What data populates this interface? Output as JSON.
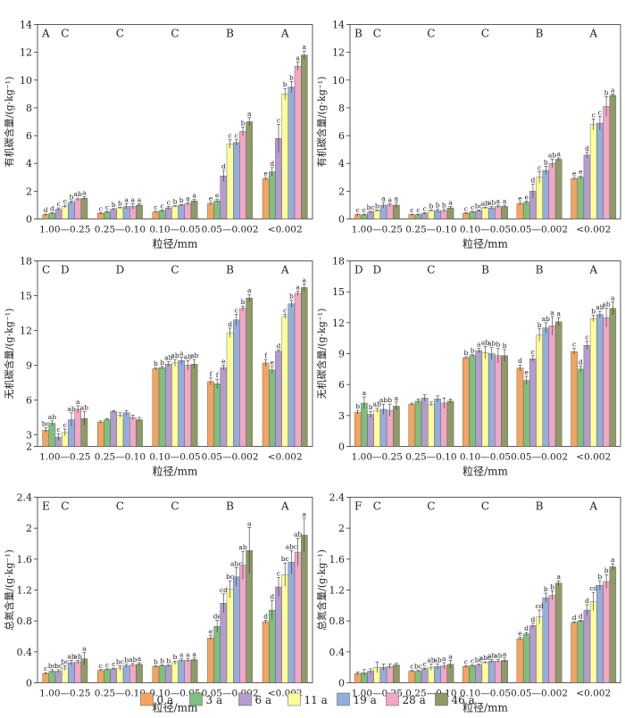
{
  "colors": [
    "#f4a460",
    "#7fbf7f",
    "#b39ccf",
    "#ffff99",
    "#93aedc",
    "#f2a7c5",
    "#8e9a67"
  ],
  "legend": [
    "0 a",
    "3 a",
    "6 a",
    "11 a",
    "19 a",
    "28 a",
    "46 a"
  ],
  "chart_data": [
    {
      "type": "bar",
      "panel": "A",
      "ylabel": "有机碳含量/(g·kg⁻¹)",
      "xlabel": "粒径/mm",
      "categories": [
        "1.00—0.25",
        "0.25—0.10",
        "0.10—0.05",
        "0.05—0.002",
        "<0.002"
      ],
      "group_letters": [
        "C",
        "C",
        "C",
        "B",
        "A"
      ],
      "ylim": [
        0,
        14
      ],
      "yticks": [
        0,
        2,
        4,
        6,
        8,
        10,
        12,
        14
      ],
      "values": [
        [
          0.3,
          0.4,
          0.7,
          0.9,
          1.2,
          1.4,
          1.5
        ],
        [
          0.4,
          0.5,
          0.7,
          0.8,
          0.9,
          0.9,
          1.0
        ],
        [
          0.5,
          0.6,
          0.8,
          0.9,
          1.0,
          1.1,
          1.3
        ],
        [
          1.1,
          1.3,
          3.1,
          5.4,
          5.5,
          6.3,
          7.0
        ],
        [
          2.9,
          3.4,
          5.8,
          9.0,
          9.5,
          11.0,
          11.8
        ]
      ],
      "errors": [
        [
          0.05,
          0.05,
          0.1,
          0.1,
          0.1,
          0.1,
          0.1
        ],
        [
          0.05,
          0.05,
          0.05,
          0.05,
          0.2,
          0.2,
          0.1
        ],
        [
          0.05,
          0.05,
          0.1,
          0.05,
          0.05,
          0.1,
          0.1
        ],
        [
          0.1,
          0.1,
          0.4,
          0.3,
          0.2,
          0.3,
          0.3
        ],
        [
          0.1,
          0.3,
          1.0,
          0.4,
          0.4,
          0.3,
          0.3
        ]
      ],
      "letters": [
        [
          "d",
          "d",
          "c",
          "c",
          "b",
          "ab",
          "a"
        ],
        [
          "c",
          "c",
          "b",
          "b",
          "a",
          "a",
          "a"
        ],
        [
          "c",
          "c",
          "c",
          "b",
          "b",
          "a",
          "a"
        ],
        [
          "e",
          "e",
          "d",
          "c",
          "c",
          "b",
          "a"
        ],
        [
          "e",
          "d",
          "c",
          "b",
          "b",
          "a",
          "a"
        ]
      ]
    },
    {
      "type": "bar",
      "panel": "B",
      "ylabel": "有机碳含量/(g·kg⁻¹)",
      "xlabel": "粒径/mm",
      "categories": [
        "1.00—0.25",
        "0.25—0.10",
        "0.10—0.05",
        "0.05—0.002",
        "<0.002"
      ],
      "group_letters": [
        "C",
        "C",
        "C",
        "B",
        "A"
      ],
      "ylim": [
        0,
        14
      ],
      "yticks": [
        0,
        2,
        4,
        6,
        8,
        10,
        12,
        14
      ],
      "values": [
        [
          0.3,
          0.3,
          0.5,
          0.6,
          1.0,
          1.0,
          1.0
        ],
        [
          0.3,
          0.3,
          0.4,
          0.6,
          0.6,
          0.6,
          0.8
        ],
        [
          0.4,
          0.5,
          0.6,
          0.8,
          0.8,
          0.9,
          0.9
        ],
        [
          1.1,
          1.2,
          2.0,
          3.0,
          3.5,
          4.0,
          4.3
        ],
        [
          2.9,
          3.0,
          4.6,
          6.8,
          6.9,
          8.1,
          8.9
        ]
      ],
      "errors": [
        [
          0.05,
          0.05,
          0.05,
          0.05,
          0.2,
          0.1,
          0.2
        ],
        [
          0.05,
          0.05,
          0.05,
          0.05,
          0.1,
          0.1,
          0.1
        ],
        [
          0.05,
          0.05,
          0.05,
          0.05,
          0.1,
          0.1,
          0.1
        ],
        [
          0.1,
          0.1,
          0.5,
          0.4,
          0.3,
          0.3,
          0.1
        ],
        [
          0.1,
          0.1,
          0.2,
          0.4,
          0.5,
          0.7,
          0.1
        ]
      ],
      "letters": [
        [
          "c",
          "c",
          "bc",
          "b",
          "a",
          "a",
          "a"
        ],
        [
          "c",
          "c",
          "c",
          "b",
          "b",
          "b",
          "a"
        ],
        [
          "c",
          "c",
          "bc",
          "ab",
          "ab",
          "a",
          "a"
        ],
        [
          "e",
          "e",
          "d",
          "c",
          "b",
          "ab",
          "a"
        ],
        [
          "e",
          "e",
          "d",
          "c",
          "c",
          "b",
          "a"
        ]
      ]
    },
    {
      "type": "bar",
      "panel": "C",
      "ylabel": "无机碳含量/(g·kg⁻¹)",
      "xlabel": "粒径/mm",
      "categories": [
        "1.00—0.25",
        "0.25—0.10",
        "0.10—0.05",
        "0.05—0.002",
        "<0.002"
      ],
      "group_letters": [
        "D",
        "D",
        "C",
        "B",
        "A"
      ],
      "ylim": [
        2,
        18
      ],
      "yticks": [
        2,
        3,
        6,
        9,
        12,
        15,
        18
      ],
      "values": [
        [
          3.4,
          4.0,
          2.8,
          3.2,
          4.3,
          5.2,
          4.4
        ],
        [
          4.1,
          4.3,
          5.0,
          4.7,
          4.9,
          4.5,
          4.3
        ],
        [
          8.7,
          8.8,
          9.1,
          9.2,
          9.4,
          9.0,
          9.1
        ],
        [
          7.6,
          7.4,
          8.8,
          11.8,
          12.9,
          13.9,
          14.8
        ],
        [
          9.2,
          8.6,
          10.2,
          13.2,
          14.3,
          15.2,
          15.7
        ]
      ],
      "errors": [
        [
          0.2,
          0.2,
          0.3,
          0.3,
          0.6,
          0.3,
          0.6
        ],
        [
          0.1,
          0.1,
          0.1,
          0.2,
          0.2,
          0.2,
          0.2
        ],
        [
          0.1,
          0.1,
          0.2,
          0.3,
          0.3,
          0.4,
          0.4
        ],
        [
          0.3,
          0.4,
          0.2,
          0.4,
          0.5,
          0.2,
          0.3
        ],
        [
          0.3,
          0.3,
          0.1,
          0.2,
          0.3,
          0.2,
          0.3
        ]
      ],
      "letters": [
        [
          "bc",
          "ab",
          "c",
          "c",
          "ab",
          "a",
          "ab"
        ],
        [
          "",
          "",
          "",
          "",
          "",
          "",
          ""
        ],
        [
          "b",
          "b",
          "ab",
          "ab",
          "a",
          "ab",
          "ab"
        ],
        [
          "f",
          "f",
          "e",
          "d",
          "c",
          "b",
          "a"
        ],
        [
          "f",
          "e",
          "d",
          "c",
          "b",
          "a",
          "a"
        ]
      ]
    },
    {
      "type": "bar",
      "panel": "D",
      "ylabel": "无机碳含量/(g·kg⁻¹)",
      "xlabel": "粒径/mm",
      "categories": [
        "1.00—0.25",
        "0.25—0.10",
        "0.10—0.05",
        "0.05—0.002",
        "<0.002"
      ],
      "group_letters": [
        "D",
        "C",
        "B",
        "B",
        "A"
      ],
      "ylim": [
        0,
        18
      ],
      "yticks": [
        0,
        3,
        6,
        9,
        12,
        15,
        18
      ],
      "values": [
        [
          3.3,
          4.2,
          3.1,
          3.5,
          3.6,
          3.5,
          3.9
        ],
        [
          4.1,
          4.4,
          4.7,
          4.1,
          4.6,
          4.2,
          4.4
        ],
        [
          8.6,
          8.8,
          9.3,
          9.1,
          9.0,
          8.8,
          8.8
        ],
        [
          7.6,
          6.4,
          8.5,
          10.8,
          11.5,
          11.7,
          12.1
        ],
        [
          9.2,
          7.5,
          9.8,
          12.4,
          12.8,
          12.5,
          13.4
        ]
      ],
      "errors": [
        [
          0.2,
          0.6,
          0.3,
          0.2,
          0.5,
          0.6,
          0.4
        ],
        [
          0.1,
          0.2,
          0.3,
          0.2,
          0.3,
          0.5,
          0.2
        ],
        [
          0.1,
          0.1,
          0.2,
          0.6,
          0.6,
          0.7,
          0.6
        ],
        [
          0.3,
          0.4,
          0.3,
          0.6,
          0.5,
          0.9,
          0.4
        ],
        [
          0.3,
          0.3,
          0.4,
          0.3,
          0.3,
          0.9,
          0.6
        ]
      ],
      "letters": [
        [
          "b",
          "a",
          "b",
          "ab",
          "ab",
          "b",
          "a"
        ],
        [
          "",
          "",
          "",
          "",
          "",
          "",
          ""
        ],
        [
          "b",
          "b",
          "a",
          "ab",
          "ab",
          "b",
          "b"
        ],
        [
          "d",
          "e",
          "c",
          "b",
          "ab",
          "a",
          "a"
        ],
        [
          "c",
          "d",
          "c",
          "b",
          "ab",
          "ab",
          "a"
        ]
      ]
    },
    {
      "type": "bar",
      "panel": "E",
      "ylabel": "总氮含量/(g·kg⁻¹)",
      "xlabel": "粒径/mm",
      "categories": [
        "1.00—0.25",
        "0.25—0.10",
        "0.10—0.05",
        "0.05—0.002",
        "<0.002"
      ],
      "group_letters": [
        "C",
        "C",
        "C",
        "B",
        "A"
      ],
      "ylim": [
        0,
        2.4
      ],
      "yticks": [
        0,
        0.4,
        0.8,
        1.2,
        1.6,
        2.0,
        2.4
      ],
      "values": [
        [
          0.12,
          0.15,
          0.15,
          0.19,
          0.26,
          0.27,
          0.31
        ],
        [
          0.16,
          0.17,
          0.18,
          0.19,
          0.22,
          0.23,
          0.24
        ],
        [
          0.21,
          0.22,
          0.22,
          0.26,
          0.29,
          0.29,
          0.3
        ],
        [
          0.58,
          0.73,
          1.03,
          1.21,
          1.37,
          1.52,
          1.71
        ],
        [
          0.79,
          0.94,
          1.24,
          1.4,
          1.56,
          1.69,
          1.91
        ]
      ],
      "errors": [
        [
          0.01,
          0.02,
          0.02,
          0.03,
          0.03,
          0.02,
          0.08
        ],
        [
          0.01,
          0.01,
          0.01,
          0.03,
          0.02,
          0.02,
          0.02
        ],
        [
          0.01,
          0.01,
          0.01,
          0.02,
          0.02,
          0.02,
          0.02
        ],
        [
          0.03,
          0.08,
          0.12,
          0.11,
          0.12,
          0.18,
          0.3
        ],
        [
          0.02,
          0.12,
          0.12,
          0.15,
          0.15,
          0.18,
          0.22
        ]
      ],
      "letters": [
        [
          "c",
          "bc",
          "bc",
          "bc",
          "ab",
          "ab",
          "a"
        ],
        [
          "c",
          "c",
          "c",
          "bc",
          "b",
          "ab",
          "a"
        ],
        [
          "b",
          "b",
          "b",
          "b",
          "a",
          "a",
          "a"
        ],
        [
          "e",
          "de",
          "cd",
          "bc",
          "abc",
          "ab",
          "a"
        ],
        [
          "d",
          "d",
          "c",
          "bc",
          "abc",
          "ab",
          "a"
        ]
      ]
    },
    {
      "type": "bar",
      "panel": "F",
      "ylabel": "总氮含量/(g·kg⁻¹)",
      "xlabel": "粒径/mm",
      "categories": [
        "1.00—0.25",
        "0.25—0.10",
        "0.10—0.05",
        "0.05—0.002",
        "<0.002"
      ],
      "group_letters": [
        "C",
        "C",
        "C",
        "B",
        "A"
      ],
      "ylim": [
        0,
        2.4
      ],
      "yticks": [
        0,
        0.4,
        0.8,
        1.2,
        1.6,
        2.0,
        2.4
      ],
      "values": [
        [
          0.12,
          0.13,
          0.15,
          0.2,
          0.2,
          0.21,
          0.23
        ],
        [
          0.15,
          0.15,
          0.18,
          0.2,
          0.21,
          0.22,
          0.24
        ],
        [
          0.21,
          0.22,
          0.23,
          0.26,
          0.28,
          0.28,
          0.29
        ],
        [
          0.57,
          0.63,
          0.74,
          0.85,
          1.1,
          1.13,
          1.29
        ],
        [
          0.78,
          0.8,
          0.94,
          1.05,
          1.26,
          1.31,
          1.5
        ]
      ],
      "errors": [
        [
          0.02,
          0.04,
          0.03,
          0.07,
          0.04,
          0.03,
          0.02
        ],
        [
          0.01,
          0.01,
          0.01,
          0.04,
          0.03,
          0.04,
          0.05
        ],
        [
          0.01,
          0.01,
          0.01,
          0.01,
          0.02,
          0.02,
          0.03
        ],
        [
          0.02,
          0.02,
          0.03,
          0.09,
          0.06,
          0.06,
          0.03
        ],
        [
          0.01,
          0.01,
          0.07,
          0.12,
          0.06,
          0.09,
          0.04
        ]
      ],
      "letters": [
        [
          "",
          "",
          "",
          "",
          "",
          "",
          ""
        ],
        [
          "c",
          "bc",
          "c",
          "ab",
          "ab",
          "a",
          "a"
        ],
        [
          "c",
          "c",
          "bc",
          "abc",
          "ab",
          "ab",
          "a"
        ],
        [
          "e",
          "d",
          "d",
          "cd",
          "b",
          "b",
          "a"
        ],
        [
          "d",
          "d",
          "d",
          "cd",
          "b",
          "b",
          "a"
        ]
      ]
    }
  ]
}
